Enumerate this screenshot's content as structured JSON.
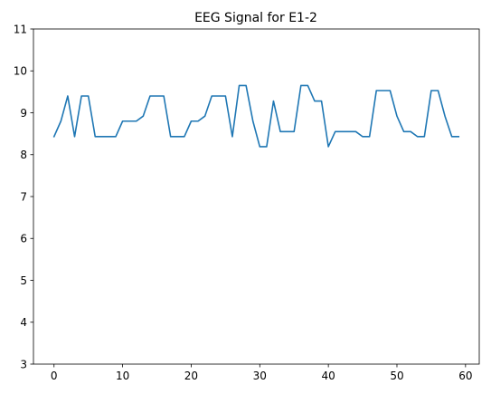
{
  "chart_data": {
    "type": "line",
    "title": "EEG Signal for E1-2",
    "xlabel": "",
    "ylabel": "",
    "xlim": [
      -3,
      62
    ],
    "ylim": [
      3,
      11
    ],
    "x_ticks": [
      0,
      10,
      20,
      30,
      40,
      50,
      60
    ],
    "y_ticks": [
      3,
      4,
      5,
      6,
      7,
      8,
      9,
      10,
      11
    ],
    "grid": false,
    "series": [
      {
        "color": "#1f77b4",
        "x": [
          0,
          1,
          2,
          3,
          4,
          5,
          6,
          7,
          8,
          9,
          10,
          11,
          12,
          13,
          14,
          15,
          16,
          17,
          18,
          19,
          20,
          21,
          22,
          23,
          24,
          25,
          26,
          27,
          28,
          29,
          30,
          31,
          32,
          33,
          34,
          35,
          36,
          37,
          38,
          39,
          40,
          41,
          42,
          43,
          44,
          45,
          46,
          47,
          48,
          49,
          50,
          51,
          52,
          53,
          54,
          55,
          56,
          57,
          58,
          59
        ],
        "values": [
          8.43,
          8.8,
          9.4,
          8.43,
          9.4,
          9.4,
          8.43,
          8.43,
          8.43,
          8.43,
          8.8,
          8.8,
          8.8,
          8.92,
          9.4,
          9.4,
          9.4,
          8.43,
          8.43,
          8.43,
          8.8,
          8.8,
          8.92,
          9.4,
          9.4,
          9.4,
          8.43,
          9.65,
          9.65,
          8.8,
          8.19,
          8.19,
          9.28,
          8.55,
          8.55,
          8.55,
          9.65,
          9.65,
          9.28,
          9.28,
          8.19,
          8.55,
          8.55,
          8.55,
          8.55,
          8.43,
          8.43,
          9.53,
          9.53,
          9.53,
          8.92,
          8.55,
          8.55,
          8.43,
          8.43,
          9.53,
          9.53,
          8.92,
          8.43,
          8.43
        ]
      }
    ]
  }
}
